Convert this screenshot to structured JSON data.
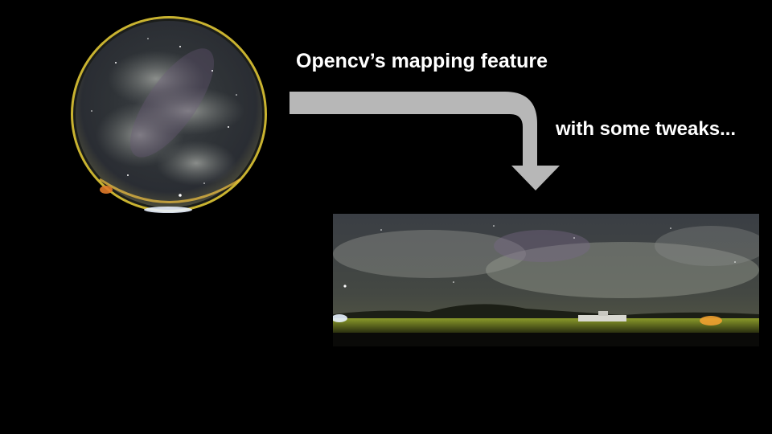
{
  "slide": {
    "caption_primary": "Opencv’s mapping feature",
    "caption_secondary": "with some tweaks..."
  },
  "images": {
    "fisheye": {
      "description_icon": "fisheye-allsky-photo"
    },
    "panorama": {
      "description_icon": "equirectangular-panorama-photo"
    }
  },
  "colors": {
    "background": "#000000",
    "text": "#ffffff",
    "arrow": "#b7b7b7"
  }
}
